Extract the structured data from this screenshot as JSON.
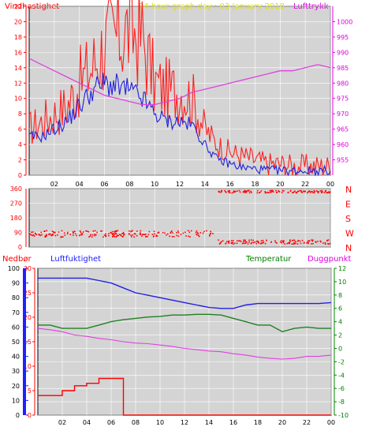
{
  "colors": {
    "wind": "#ff0000",
    "gust": "#ff2020",
    "mean": "#2020e0",
    "pressure": "#e040e0",
    "direction": "#ff0000",
    "rain": "#ff0000",
    "humidity": "#2020e0",
    "temperature": "#208020",
    "dewpoint": "#e040e0",
    "frame": "#000000",
    "grid": "#ffffff",
    "redaxis": "#ff0000",
    "pinkaxis": "#e000e0",
    "title": "#e0e000",
    "blueaxis": "#2020ff",
    "greenaxis": "#008000"
  },
  "top": {
    "title": "24 hour graph day : 03 January 2018",
    "left_label": "Vindhastighet",
    "right_label": "Lufttrykk"
  },
  "middle": {
    "compass": [
      "N",
      "W",
      "S",
      "E",
      "N"
    ]
  },
  "bottom": {
    "rain_label": "Nedbør",
    "humidity_label": "Luftfuktighet",
    "temp_label": "Temperatur",
    "dew_label": "Duggpunkt"
  },
  "chart_data": [
    {
      "type": "line",
      "title": "24 hour graph day : 03 January 2018",
      "xlabel": "",
      "ylabel": "Vindhastighet",
      "y2label": "Lufttrykk",
      "ylim": [
        0,
        22
      ],
      "y2lim": [
        950,
        1005
      ],
      "x_ticks": [
        "02",
        "04",
        "06",
        "08",
        "10",
        "12",
        "14",
        "16",
        "18",
        "20",
        "22",
        "00"
      ],
      "y_ticks": [
        0,
        2,
        4,
        6,
        8,
        10,
        12,
        14,
        16,
        18,
        20,
        22
      ],
      "y2_ticks": [
        955,
        960,
        965,
        970,
        975,
        980,
        985,
        990,
        995,
        1000
      ],
      "x_hours": [
        0,
        1,
        2,
        3,
        4,
        5,
        6,
        7,
        8,
        9,
        10,
        11,
        12,
        13,
        14,
        15,
        16,
        17,
        18,
        19,
        20,
        21,
        22,
        23,
        24
      ],
      "series": [
        {
          "key": "gust",
          "axis": "left",
          "values": [
            6,
            7,
            8,
            9,
            12,
            14,
            17,
            18,
            19,
            18,
            12,
            11,
            11,
            10,
            6,
            4,
            3,
            2.5,
            2,
            1.5,
            1.5,
            1.2,
            1.2,
            1.2,
            1.2
          ]
        },
        {
          "key": "mean",
          "axis": "left",
          "values": [
            5,
            5,
            6,
            7,
            9,
            11,
            12,
            11.5,
            11,
            10,
            8,
            7,
            7,
            6.5,
            4,
            2,
            1.5,
            1,
            0.8,
            0.7,
            0.6,
            0.6,
            0.6,
            0.6,
            0.6
          ]
        },
        {
          "key": "pressure",
          "axis": "right",
          "values": [
            988,
            986,
            984,
            982,
            980,
            978,
            976,
            975,
            974,
            973,
            973,
            974,
            975,
            977,
            978,
            979,
            980,
            981,
            982,
            983,
            984,
            984,
            985,
            986,
            985
          ]
        }
      ]
    },
    {
      "type": "scatter",
      "ylabel": "",
      "ylim": [
        0,
        360
      ],
      "y_ticks": [
        0,
        90,
        180,
        270,
        360
      ],
      "clusters": [
        {
          "from_hour": 0,
          "to_hour": 15,
          "y": 80,
          "spread": 40
        },
        {
          "from_hour": 15,
          "to_hour": 24,
          "y": 30,
          "spread": 25
        },
        {
          "from_hour": 15,
          "to_hour": 24,
          "y": 340,
          "spread": 15
        }
      ]
    },
    {
      "type": "line",
      "ylim_rain": [
        0,
        100
      ],
      "ylim_humidity": [
        0,
        30
      ],
      "ylim_temp": [
        -10,
        12
      ],
      "rain_ticks": [
        0,
        10,
        20,
        30,
        40,
        50,
        60,
        70,
        80,
        90,
        100
      ],
      "humidity_ticks": [
        0,
        5,
        10,
        15,
        20,
        25,
        30
      ],
      "temp_ticks": [
        -10,
        -8,
        -6,
        -4,
        -2,
        0,
        2,
        4,
        6,
        8,
        10,
        12
      ],
      "x_ticks": [
        "02",
        "04",
        "06",
        "08",
        "10",
        "12",
        "14",
        "16",
        "18",
        "20",
        "22",
        "00"
      ],
      "x_hours": [
        0,
        1,
        2,
        3,
        4,
        5,
        6,
        7,
        8,
        9,
        10,
        11,
        12,
        13,
        14,
        15,
        16,
        17,
        18,
        19,
        20,
        21,
        22,
        23,
        24
      ],
      "series": [
        {
          "key": "humidity",
          "axis": "humidity",
          "values": [
            28,
            28,
            28,
            28,
            28,
            27.5,
            27,
            26,
            25,
            24.5,
            24,
            23.5,
            23,
            22.5,
            22,
            21.8,
            21.8,
            22.5,
            22.8,
            22.8,
            22.8,
            22.8,
            22.8,
            22.8,
            23
          ]
        },
        {
          "key": "temperature",
          "axis": "temp",
          "values": [
            3.5,
            3.5,
            3,
            3,
            3,
            3.5,
            4,
            4.3,
            4.5,
            4.7,
            4.8,
            5,
            5,
            5.1,
            5.1,
            5,
            4.5,
            4,
            3.5,
            3.5,
            2.5,
            3,
            3.2,
            3,
            3
          ]
        },
        {
          "key": "dewpoint",
          "axis": "temp",
          "values": [
            3,
            2.8,
            2.5,
            2,
            1.8,
            1.5,
            1.3,
            1,
            0.8,
            0.7,
            0.5,
            0.3,
            0,
            -0.2,
            -0.4,
            -0.5,
            -0.8,
            -1,
            -1.3,
            -1.5,
            -1.6,
            -1.5,
            -1.2,
            -1.2,
            -1
          ]
        },
        {
          "key": "rain",
          "axis": "humidity",
          "values": [
            4,
            4,
            5,
            6,
            6.5,
            7.5,
            7.5,
            0,
            0,
            0,
            0,
            0,
            0,
            0,
            0,
            0,
            0,
            0,
            0,
            0,
            0,
            0,
            0,
            0,
            0
          ]
        }
      ]
    }
  ]
}
